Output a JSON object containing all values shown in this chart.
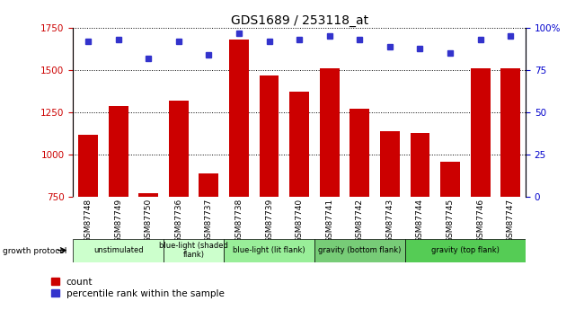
{
  "title": "GDS1689 / 253118_at",
  "samples": [
    "GSM87748",
    "GSM87749",
    "GSM87750",
    "GSM87736",
    "GSM87737",
    "GSM87738",
    "GSM87739",
    "GSM87740",
    "GSM87741",
    "GSM87742",
    "GSM87743",
    "GSM87744",
    "GSM87745",
    "GSM87746",
    "GSM87747"
  ],
  "counts": [
    1120,
    1290,
    770,
    1320,
    890,
    1680,
    1470,
    1370,
    1510,
    1270,
    1140,
    1130,
    960,
    1510,
    1510
  ],
  "percentile": [
    92,
    93,
    82,
    92,
    84,
    97,
    92,
    93,
    95,
    93,
    89,
    88,
    85,
    93,
    95
  ],
  "ylim_left": [
    750,
    1750
  ],
  "ylim_right": [
    0,
    100
  ],
  "yticks_left": [
    750,
    1000,
    1250,
    1500,
    1750
  ],
  "yticks_right": [
    0,
    25,
    50,
    75,
    100
  ],
  "bar_color": "#cc0000",
  "dot_color": "#3333cc",
  "bg_plot": "#ffffff",
  "bg_xtick": "#cccccc",
  "group_defs": [
    {
      "label": "unstimulated",
      "start": 0,
      "end": 2,
      "color": "#ccffcc"
    },
    {
      "label": "blue-light (shaded\nflank)",
      "start": 3,
      "end": 4,
      "color": "#ccffcc"
    },
    {
      "label": "blue-light (lit flank)",
      "start": 5,
      "end": 7,
      "color": "#99ee99"
    },
    {
      "label": "gravity (bottom flank)",
      "start": 8,
      "end": 10,
      "color": "#77cc77"
    },
    {
      "label": "gravity (top flank)",
      "start": 11,
      "end": 14,
      "color": "#55cc55"
    }
  ],
  "left_axis_color": "#cc0000",
  "right_axis_color": "#0000cc"
}
